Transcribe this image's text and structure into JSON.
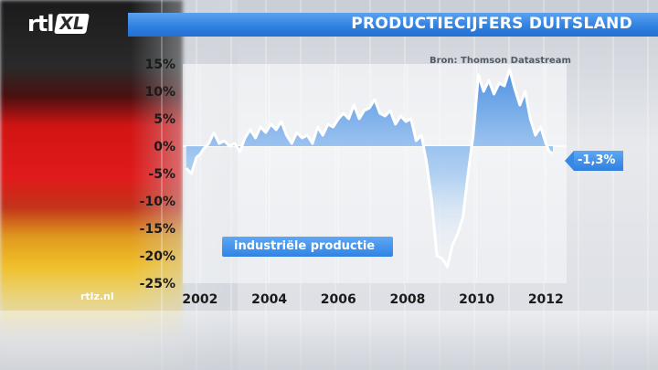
{
  "header": {
    "logo_rtl": "rtl",
    "logo_xl": "XL",
    "title": "PRODUCTIECIJFERS DUITSLAND",
    "site": "rtlz.nl"
  },
  "colors": {
    "accent": "#2f7fe0",
    "line": "#ffffff",
    "area_top": "#2f7fe0",
    "area_bottom": "#ffffff"
  },
  "chart_data": {
    "type": "area",
    "title": "",
    "source": "Bron: Thomson Datastream",
    "series_label": "industriële productie",
    "last_value_label": "-1,3%",
    "xlim": [
      2001.5,
      2012.6
    ],
    "ylim": [
      -25,
      15
    ],
    "x_ticks": [
      2002,
      2004,
      2006,
      2008,
      2010,
      2012
    ],
    "x_tick_labels": [
      "2002",
      "2004",
      "2006",
      "2008",
      "2010",
      "2012"
    ],
    "y_ticks": [
      15,
      10,
      5,
      0,
      -5,
      -10,
      -15,
      -20,
      -25
    ],
    "y_tick_labels": [
      "15%",
      "10%",
      "5%",
      "0%",
      "-5%",
      "-10%",
      "-15%",
      "-20%",
      "-25%"
    ],
    "x": [
      2001.6,
      2001.75,
      2001.9,
      2002.0,
      2002.1,
      2002.25,
      2002.4,
      2002.55,
      2002.7,
      2002.85,
      2003.0,
      2003.15,
      2003.3,
      2003.45,
      2003.6,
      2003.75,
      2003.9,
      2004.05,
      2004.2,
      2004.35,
      2004.5,
      2004.65,
      2004.8,
      2004.95,
      2005.1,
      2005.25,
      2005.4,
      2005.55,
      2005.7,
      2005.85,
      2006.0,
      2006.15,
      2006.3,
      2006.45,
      2006.6,
      2006.75,
      2006.9,
      2007.05,
      2007.2,
      2007.35,
      2007.5,
      2007.65,
      2007.8,
      2007.95,
      2008.1,
      2008.25,
      2008.4,
      2008.55,
      2008.7,
      2008.85,
      2009.0,
      2009.15,
      2009.3,
      2009.45,
      2009.6,
      2009.75,
      2009.9,
      2010.05,
      2010.2,
      2010.35,
      2010.5,
      2010.65,
      2010.8,
      2010.95,
      2011.1,
      2011.25,
      2011.4,
      2011.55,
      2011.7,
      2011.85,
      2012.0,
      2012.1,
      2012.2
    ],
    "y": [
      -4.0,
      -5.0,
      -2.0,
      -1.5,
      -0.5,
      0.5,
      2.5,
      0.5,
      1.0,
      0.0,
      0.5,
      -1.0,
      1.5,
      3.0,
      1.5,
      3.5,
      2.5,
      4.0,
      3.0,
      4.5,
      2.0,
      0.5,
      2.5,
      1.5,
      2.0,
      0.5,
      3.5,
      2.0,
      4.0,
      3.5,
      5.0,
      6.0,
      5.0,
      7.5,
      5.0,
      6.5,
      7.0,
      8.5,
      6.0,
      5.5,
      6.5,
      4.0,
      5.5,
      4.5,
      5.0,
      1.0,
      2.0,
      -3.0,
      -10.0,
      -20.0,
      -20.5,
      -22.0,
      -18.0,
      -16.0,
      -13.0,
      -5.0,
      2.0,
      13.0,
      10.0,
      12.0,
      9.5,
      11.5,
      11.0,
      14.0,
      10.5,
      7.5,
      10.0,
      5.0,
      2.0,
      3.5,
      0.5,
      -1.0,
      -1.3
    ]
  }
}
